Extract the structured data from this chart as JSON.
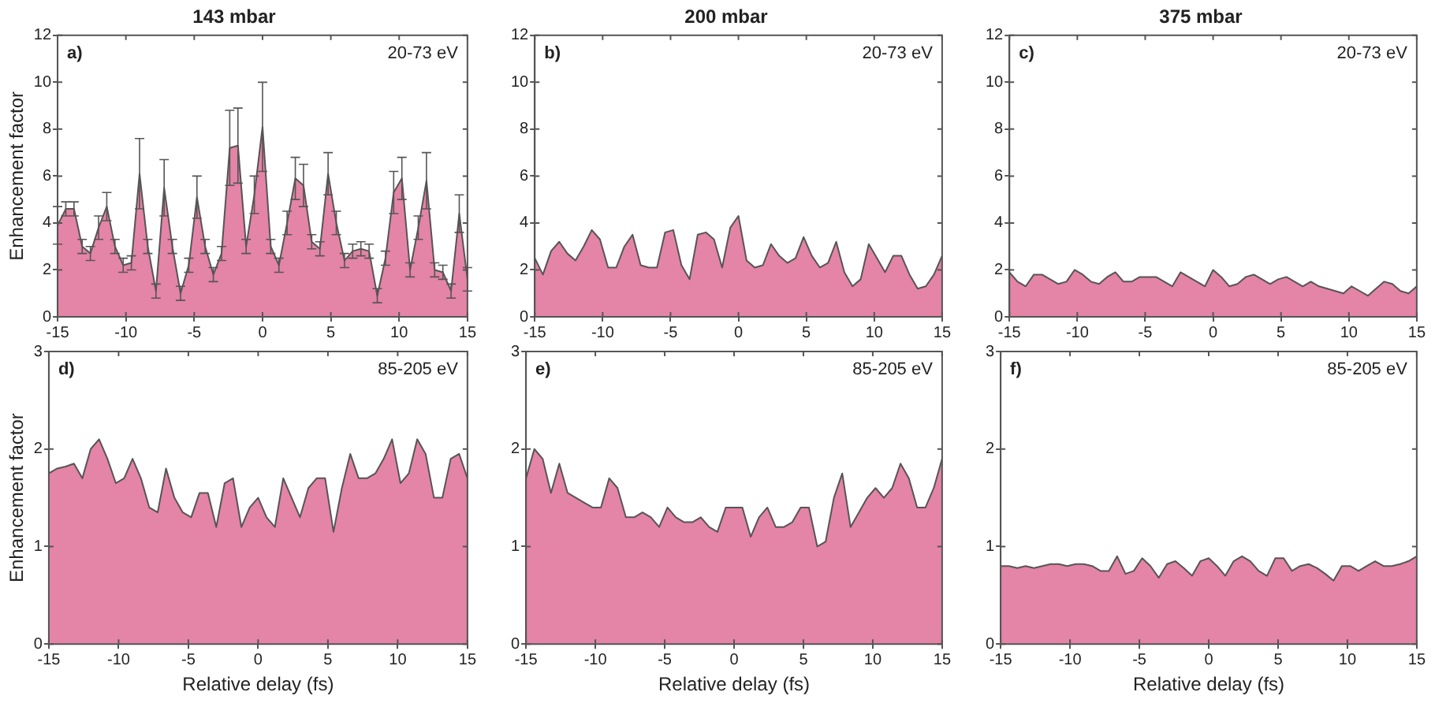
{
  "chart_data": [
    {
      "type": "area",
      "title": "143 mbar",
      "ylabel": "Enhancement factor",
      "annotations": [
        "a)",
        "20-73 eV"
      ],
      "grid": false,
      "color": "#e484a6",
      "x": [
        -15,
        -14.4,
        -13.8,
        -13.2,
        -12.6,
        -12,
        -11.4,
        -10.8,
        -10.2,
        -9.6,
        -9,
        -8.4,
        -7.8,
        -7.2,
        -6.6,
        -6,
        -5.4,
        -4.8,
        -4.2,
        -3.6,
        -3,
        -2.4,
        -1.8,
        -1.2,
        -0.6,
        0,
        0.6,
        1.2,
        1.8,
        2.4,
        3,
        3.6,
        4.2,
        4.8,
        5.4,
        6,
        6.6,
        7.2,
        7.8,
        8.4,
        9,
        9.6,
        10.2,
        10.8,
        11.4,
        12,
        12.6,
        13.2,
        13.8,
        14.4,
        15
      ],
      "values": [
        3.9,
        4.6,
        4.6,
        3.0,
        2.7,
        3.8,
        4.7,
        3.0,
        2.2,
        2.3,
        6.1,
        3.0,
        1.1,
        5.5,
        3.0,
        1.0,
        2.2,
        5.1,
        3.0,
        1.8,
        2.7,
        7.2,
        7.3,
        3.0,
        5.2,
        8.1,
        3.0,
        2.2,
        4.0,
        5.9,
        5.6,
        3.2,
        2.9,
        6.1,
        4.0,
        2.4,
        2.8,
        2.9,
        2.8,
        0.9,
        2.5,
        5.3,
        5.9,
        2.0,
        3.8,
        5.8,
        2.0,
        1.9,
        1.1,
        4.4,
        1.6
      ],
      "errors": [
        0.8,
        0.3,
        0.3,
        0.3,
        0.3,
        0.5,
        0.6,
        0.3,
        0.3,
        0.3,
        1.5,
        0.3,
        0.3,
        1.2,
        0.3,
        0.3,
        0.3,
        0.9,
        0.3,
        0.3,
        0.3,
        1.6,
        1.6,
        0.3,
        0.8,
        1.9,
        0.3,
        0.3,
        0.5,
        0.9,
        0.9,
        0.3,
        0.3,
        0.9,
        0.5,
        0.3,
        0.3,
        0.3,
        0.3,
        0.3,
        0.3,
        0.9,
        0.9,
        0.3,
        0.5,
        1.2,
        0.3,
        0.3,
        0.3,
        0.8,
        0.5
      ],
      "xlim": [
        -15,
        15
      ],
      "xticks": [
        -15,
        -10,
        -5,
        0,
        5,
        10,
        15
      ],
      "ylim": [
        0,
        12
      ],
      "yticks": [
        0,
        2,
        4,
        6,
        8,
        10,
        12
      ]
    },
    {
      "type": "area",
      "title": "200 mbar",
      "annotations": [
        "b)",
        "20-73 eV"
      ],
      "grid": false,
      "color": "#e484a6",
      "x": [
        -15,
        -14.4,
        -13.8,
        -13.2,
        -12.6,
        -12,
        -11.4,
        -10.8,
        -10.2,
        -9.6,
        -9,
        -8.4,
        -7.8,
        -7.2,
        -6.6,
        -6,
        -5.4,
        -4.8,
        -4.2,
        -3.6,
        -3,
        -2.4,
        -1.8,
        -1.2,
        -0.6,
        0,
        0.6,
        1.2,
        1.8,
        2.4,
        3,
        3.6,
        4.2,
        4.8,
        5.4,
        6,
        6.6,
        7.2,
        7.8,
        8.4,
        9,
        9.6,
        10.2,
        10.8,
        11.4,
        12,
        12.6,
        13.2,
        13.8,
        14.4,
        15
      ],
      "values": [
        2.5,
        1.8,
        2.8,
        3.2,
        2.7,
        2.4,
        3.0,
        3.7,
        3.3,
        2.1,
        2.1,
        3.0,
        3.5,
        2.2,
        2.1,
        2.1,
        3.6,
        3.7,
        2.2,
        1.6,
        3.5,
        3.6,
        3.3,
        2.1,
        3.8,
        4.3,
        2.4,
        2.1,
        2.2,
        3.1,
        2.6,
        2.3,
        2.5,
        3.4,
        2.6,
        2.1,
        2.3,
        3.2,
        1.9,
        1.3,
        1.6,
        3.1,
        2.5,
        1.9,
        2.6,
        2.6,
        1.8,
        1.2,
        1.3,
        1.8,
        2.6
      ],
      "xlim": [
        -15,
        15
      ],
      "xticks": [
        -15,
        -10,
        -5,
        0,
        5,
        10,
        15
      ],
      "ylim": [
        0,
        12
      ],
      "yticks": [
        0,
        2,
        4,
        6,
        8,
        10,
        12
      ]
    },
    {
      "type": "area",
      "title": "375 mbar",
      "annotations": [
        "c)",
        "20-73 eV"
      ],
      "grid": false,
      "color": "#e484a6",
      "x": [
        -15,
        -14.4,
        -13.8,
        -13.2,
        -12.6,
        -12,
        -11.4,
        -10.8,
        -10.2,
        -9.6,
        -9,
        -8.4,
        -7.8,
        -7.2,
        -6.6,
        -6,
        -5.4,
        -4.8,
        -4.2,
        -3.6,
        -3,
        -2.4,
        -1.8,
        -1.2,
        -0.6,
        0,
        0.6,
        1.2,
        1.8,
        2.4,
        3,
        3.6,
        4.2,
        4.8,
        5.4,
        6,
        6.6,
        7.2,
        7.8,
        8.4,
        9,
        9.6,
        10.2,
        10.8,
        11.4,
        12,
        12.6,
        13.2,
        13.8,
        14.4,
        15
      ],
      "values": [
        1.9,
        1.5,
        1.3,
        1.8,
        1.8,
        1.6,
        1.4,
        1.5,
        2.0,
        1.8,
        1.5,
        1.4,
        1.7,
        1.9,
        1.5,
        1.5,
        1.7,
        1.7,
        1.7,
        1.5,
        1.3,
        1.9,
        1.7,
        1.5,
        1.3,
        2.0,
        1.7,
        1.3,
        1.4,
        1.7,
        1.8,
        1.6,
        1.4,
        1.6,
        1.7,
        1.5,
        1.3,
        1.5,
        1.3,
        1.2,
        1.1,
        1.0,
        1.3,
        1.1,
        0.9,
        1.2,
        1.5,
        1.4,
        1.1,
        1.0,
        1.3
      ],
      "xlim": [
        -15,
        15
      ],
      "xticks": [
        -15,
        -10,
        -5,
        0,
        5,
        10,
        15
      ],
      "ylim": [
        0,
        12
      ],
      "yticks": [
        0,
        2,
        4,
        6,
        8,
        10,
        12
      ]
    },
    {
      "type": "area",
      "xlabel": "Relative delay (fs)",
      "ylabel": "Enhancement factor",
      "annotations": [
        "d)",
        "85-205 eV"
      ],
      "grid": false,
      "color": "#e484a6",
      "x": [
        -15,
        -14.4,
        -13.8,
        -13.2,
        -12.6,
        -12,
        -11.4,
        -10.8,
        -10.2,
        -9.6,
        -9,
        -8.4,
        -7.8,
        -7.2,
        -6.6,
        -6,
        -5.4,
        -4.8,
        -4.2,
        -3.6,
        -3,
        -2.4,
        -1.8,
        -1.2,
        -0.6,
        0,
        0.6,
        1.2,
        1.8,
        2.4,
        3,
        3.6,
        4.2,
        4.8,
        5.4,
        6,
        6.6,
        7.2,
        7.8,
        8.4,
        9,
        9.6,
        10.2,
        10.8,
        11.4,
        12,
        12.6,
        13.2,
        13.8,
        14.4,
        15
      ],
      "values": [
        1.75,
        1.8,
        1.82,
        1.85,
        1.7,
        2.0,
        2.1,
        1.9,
        1.65,
        1.7,
        1.9,
        1.7,
        1.4,
        1.35,
        1.8,
        1.5,
        1.35,
        1.3,
        1.55,
        1.55,
        1.2,
        1.65,
        1.7,
        1.2,
        1.4,
        1.5,
        1.3,
        1.2,
        1.7,
        1.5,
        1.3,
        1.6,
        1.7,
        1.7,
        1.15,
        1.6,
        1.95,
        1.7,
        1.7,
        1.75,
        1.9,
        2.1,
        1.65,
        1.75,
        2.1,
        1.95,
        1.5,
        1.5,
        1.9,
        1.95,
        1.7
      ],
      "xlim": [
        -15,
        15
      ],
      "xticks": [
        -15,
        -10,
        -5,
        0,
        5,
        10,
        15
      ],
      "ylim": [
        0,
        3
      ],
      "yticks": [
        0,
        1,
        2,
        3
      ]
    },
    {
      "type": "area",
      "xlabel": "Relative delay (fs)",
      "annotations": [
        "e)",
        "85-205 eV"
      ],
      "grid": false,
      "color": "#e484a6",
      "x": [
        -15,
        -14.4,
        -13.8,
        -13.2,
        -12.6,
        -12,
        -11.4,
        -10.8,
        -10.2,
        -9.6,
        -9,
        -8.4,
        -7.8,
        -7.2,
        -6.6,
        -6,
        -5.4,
        -4.8,
        -4.2,
        -3.6,
        -3,
        -2.4,
        -1.8,
        -1.2,
        -0.6,
        0,
        0.6,
        1.2,
        1.8,
        2.4,
        3,
        3.6,
        4.2,
        4.8,
        5.4,
        6,
        6.6,
        7.2,
        7.8,
        8.4,
        9,
        9.6,
        10.2,
        10.8,
        11.4,
        12,
        12.6,
        13.2,
        13.8,
        14.4,
        15
      ],
      "values": [
        1.7,
        2.0,
        1.9,
        1.55,
        1.85,
        1.55,
        1.5,
        1.45,
        1.4,
        1.4,
        1.7,
        1.6,
        1.3,
        1.3,
        1.35,
        1.3,
        1.2,
        1.4,
        1.3,
        1.25,
        1.25,
        1.3,
        1.2,
        1.15,
        1.4,
        1.4,
        1.4,
        1.1,
        1.3,
        1.4,
        1.2,
        1.2,
        1.25,
        1.4,
        1.4,
        1.0,
        1.05,
        1.5,
        1.75,
        1.2,
        1.35,
        1.5,
        1.6,
        1.5,
        1.6,
        1.85,
        1.7,
        1.4,
        1.4,
        1.6,
        1.9
      ],
      "xlim": [
        -15,
        15
      ],
      "xticks": [
        -15,
        -10,
        -5,
        0,
        5,
        10,
        15
      ],
      "ylim": [
        0,
        3
      ],
      "yticks": [
        0,
        1,
        2,
        3
      ]
    },
    {
      "type": "area",
      "xlabel": "Relative delay (fs)",
      "annotations": [
        "f)",
        "85-205 eV"
      ],
      "grid": false,
      "color": "#e484a6",
      "x": [
        -15,
        -14.4,
        -13.8,
        -13.2,
        -12.6,
        -12,
        -11.4,
        -10.8,
        -10.2,
        -9.6,
        -9,
        -8.4,
        -7.8,
        -7.2,
        -6.6,
        -6,
        -5.4,
        -4.8,
        -4.2,
        -3.6,
        -3,
        -2.4,
        -1.8,
        -1.2,
        -0.6,
        0,
        0.6,
        1.2,
        1.8,
        2.4,
        3,
        3.6,
        4.2,
        4.8,
        5.4,
        6,
        6.6,
        7.2,
        7.8,
        8.4,
        9,
        9.6,
        10.2,
        10.8,
        11.4,
        12,
        12.6,
        13.2,
        13.8,
        14.4,
        15
      ],
      "values": [
        0.8,
        0.8,
        0.78,
        0.8,
        0.78,
        0.8,
        0.82,
        0.82,
        0.8,
        0.82,
        0.82,
        0.8,
        0.75,
        0.75,
        0.9,
        0.72,
        0.75,
        0.88,
        0.8,
        0.68,
        0.82,
        0.85,
        0.78,
        0.7,
        0.85,
        0.88,
        0.8,
        0.7,
        0.85,
        0.9,
        0.85,
        0.75,
        0.7,
        0.88,
        0.88,
        0.75,
        0.8,
        0.82,
        0.78,
        0.72,
        0.65,
        0.8,
        0.8,
        0.75,
        0.8,
        0.85,
        0.8,
        0.8,
        0.82,
        0.85,
        0.9
      ],
      "xlim": [
        -15,
        15
      ],
      "xticks": [
        -15,
        -10,
        -5,
        0,
        5,
        10,
        15
      ],
      "ylim": [
        0,
        3
      ],
      "yticks": [
        0,
        1,
        2,
        3
      ]
    }
  ]
}
